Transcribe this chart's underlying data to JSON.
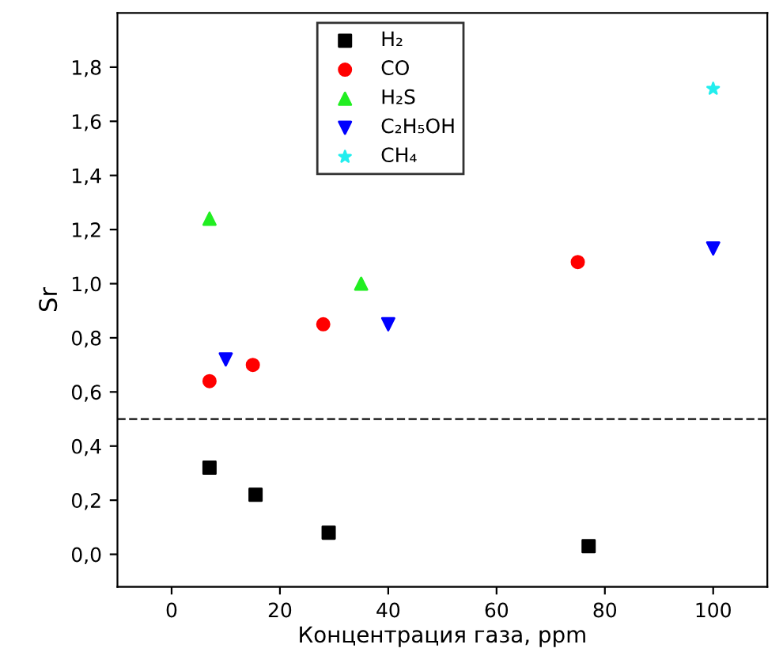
{
  "chart_data": {
    "type": "scatter",
    "xlabel": "Концентрация газа, ppm",
    "ylabel": "Sr",
    "xlim": [
      -10,
      110
    ],
    "ylim": [
      -0.12,
      2.0
    ],
    "xticks": [
      0,
      20,
      40,
      60,
      80,
      100
    ],
    "yticks": [
      {
        "value": 0.0,
        "label": "0,0"
      },
      {
        "value": 0.2,
        "label": "0,2"
      },
      {
        "value": 0.4,
        "label": "0,4"
      },
      {
        "value": 0.6,
        "label": "0,6"
      },
      {
        "value": 0.8,
        "label": "0,8"
      },
      {
        "value": 1.0,
        "label": "1,0"
      },
      {
        "value": 1.2,
        "label": "1,2"
      },
      {
        "value": 1.4,
        "label": "1,4"
      },
      {
        "value": 1.6,
        "label": "1,6"
      },
      {
        "value": 1.8,
        "label": "1,8"
      }
    ],
    "legend": "top",
    "grid": false,
    "ref_lines": [
      {
        "axis": "y",
        "value": 0.5,
        "label": null,
        "color": "#333333",
        "line_style": "dashed"
      }
    ],
    "series": [
      {
        "name": "H₂",
        "color": "#000000",
        "marker": "square",
        "x": [
          7,
          15.5,
          29,
          77
        ],
        "values": [
          0.32,
          0.22,
          0.08,
          0.03
        ]
      },
      {
        "name": "CO",
        "color": "#ff0000",
        "marker": "circle",
        "x": [
          7,
          15,
          28,
          75
        ],
        "values": [
          0.64,
          0.7,
          0.85,
          1.08
        ]
      },
      {
        "name": "H₂S",
        "color": "#22ee22",
        "marker": "triangle",
        "x": [
          7,
          35
        ],
        "values": [
          1.24,
          1.0
        ]
      },
      {
        "name": "C₂H₅OH",
        "color": "#0000ff",
        "marker": "triangle_down",
        "x": [
          10,
          40,
          100
        ],
        "values": [
          0.72,
          0.85,
          1.13
        ]
      },
      {
        "name": "CH₄",
        "color": "#22eeee",
        "marker": "star",
        "x": [
          100
        ],
        "values": [
          1.72
        ]
      }
    ]
  }
}
